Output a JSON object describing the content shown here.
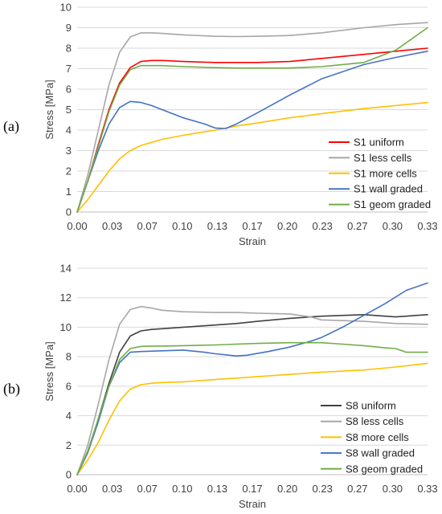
{
  "chart_data": [
    {
      "panel": "(a)",
      "type": "line",
      "xlabel": "Strain",
      "ylabel": "Stress [MPa]",
      "xlim": [
        0,
        0.33
      ],
      "ylim": [
        0,
        10
      ],
      "xticks": [
        "0.00",
        "0.03",
        "0.07",
        "0.10",
        "0.13",
        "0.17",
        "0.20",
        "0.23",
        "0.27",
        "0.30",
        "0.33"
      ],
      "yticks": [
        "0",
        "1",
        "2",
        "3",
        "4",
        "5",
        "6",
        "7",
        "8",
        "9",
        "10"
      ],
      "grid": "horizontal",
      "legend_position": "bottom-right",
      "series": [
        {
          "name": "S1 uniform",
          "color": "#ff0000",
          "x": [
            0,
            0.01,
            0.02,
            0.03,
            0.04,
            0.05,
            0.06,
            0.07,
            0.08,
            0.1,
            0.13,
            0.15,
            0.17,
            0.2,
            0.23,
            0.27,
            0.3,
            0.33
          ],
          "y": [
            0,
            1.5,
            3.3,
            5.0,
            6.3,
            7.05,
            7.35,
            7.4,
            7.4,
            7.35,
            7.3,
            7.3,
            7.3,
            7.35,
            7.5,
            7.7,
            7.85,
            8.0
          ]
        },
        {
          "name": "S1 less cells",
          "color": "#a6a6a6",
          "x": [
            0,
            0.01,
            0.02,
            0.03,
            0.04,
            0.05,
            0.06,
            0.07,
            0.08,
            0.1,
            0.13,
            0.15,
            0.17,
            0.2,
            0.23,
            0.27,
            0.3,
            0.33
          ],
          "y": [
            0,
            1.8,
            4.0,
            6.2,
            7.8,
            8.55,
            8.75,
            8.75,
            8.72,
            8.65,
            8.58,
            8.57,
            8.58,
            8.62,
            8.75,
            9.0,
            9.15,
            9.25
          ]
        },
        {
          "name": "S1 more cells",
          "color": "#ffc000",
          "x": [
            0,
            0.01,
            0.02,
            0.03,
            0.04,
            0.05,
            0.06,
            0.07,
            0.08,
            0.1,
            0.13,
            0.15,
            0.17,
            0.2,
            0.23,
            0.27,
            0.3,
            0.33
          ],
          "y": [
            0,
            0.6,
            1.3,
            2.0,
            2.6,
            3.0,
            3.25,
            3.4,
            3.55,
            3.75,
            4.0,
            4.2,
            4.35,
            4.6,
            4.8,
            5.05,
            5.2,
            5.35
          ]
        },
        {
          "name": "S1 wall graded",
          "color": "#4472c4",
          "x": [
            0,
            0.01,
            0.02,
            0.03,
            0.04,
            0.05,
            0.06,
            0.07,
            0.08,
            0.1,
            0.12,
            0.13,
            0.14,
            0.15,
            0.17,
            0.2,
            0.23,
            0.27,
            0.3,
            0.33
          ],
          "y": [
            0,
            1.5,
            3.0,
            4.3,
            5.1,
            5.4,
            5.35,
            5.2,
            5.0,
            4.6,
            4.3,
            4.1,
            4.08,
            4.3,
            4.85,
            5.7,
            6.5,
            7.2,
            7.55,
            7.85
          ]
        },
        {
          "name": "S1 geom graded",
          "color": "#70ad47",
          "x": [
            0,
            0.01,
            0.02,
            0.03,
            0.04,
            0.05,
            0.06,
            0.07,
            0.08,
            0.1,
            0.13,
            0.15,
            0.17,
            0.2,
            0.23,
            0.25,
            0.27,
            0.3,
            0.33
          ],
          "y": [
            0,
            1.5,
            3.2,
            4.9,
            6.2,
            6.95,
            7.15,
            7.15,
            7.15,
            7.1,
            7.05,
            7.03,
            7.03,
            7.03,
            7.1,
            7.2,
            7.3,
            7.9,
            9.0
          ]
        }
      ]
    },
    {
      "panel": "(b)",
      "type": "line",
      "xlabel": "Strain",
      "ylabel": "Stress [MPa]",
      "xlim": [
        0,
        0.33
      ],
      "ylim": [
        0,
        14
      ],
      "xticks": [
        "0.00",
        "0.03",
        "0.07",
        "0.10",
        "0.13",
        "0.17",
        "0.20",
        "0.23",
        "0.27",
        "0.30",
        "0.33"
      ],
      "yticks": [
        "0",
        "2",
        "4",
        "6",
        "8",
        "10",
        "12",
        "14"
      ],
      "grid": "horizontal",
      "legend_position": "bottom-right",
      "series": [
        {
          "name": "S8 uniform",
          "color": "#404040",
          "x": [
            0,
            0.01,
            0.02,
            0.03,
            0.04,
            0.05,
            0.06,
            0.07,
            0.08,
            0.1,
            0.13,
            0.15,
            0.17,
            0.2,
            0.23,
            0.27,
            0.3,
            0.32,
            0.33
          ],
          "y": [
            0,
            1.5,
            3.8,
            6.2,
            8.3,
            9.4,
            9.75,
            9.85,
            9.9,
            10.0,
            10.15,
            10.25,
            10.4,
            10.6,
            10.75,
            10.85,
            10.7,
            10.8,
            10.85
          ]
        },
        {
          "name": "S8 less cells",
          "color": "#a6a6a6",
          "x": [
            0,
            0.01,
            0.02,
            0.03,
            0.04,
            0.05,
            0.06,
            0.07,
            0.08,
            0.1,
            0.13,
            0.15,
            0.17,
            0.2,
            0.22,
            0.23,
            0.27,
            0.3,
            0.33
          ],
          "y": [
            0,
            2.0,
            4.8,
            7.8,
            10.2,
            11.2,
            11.4,
            11.3,
            11.15,
            11.05,
            11.0,
            11.0,
            10.95,
            10.9,
            10.7,
            10.5,
            10.4,
            10.25,
            10.2
          ]
        },
        {
          "name": "S8 more cells",
          "color": "#ffc000",
          "x": [
            0,
            0.01,
            0.02,
            0.03,
            0.04,
            0.05,
            0.06,
            0.07,
            0.08,
            0.1,
            0.13,
            0.15,
            0.17,
            0.2,
            0.23,
            0.27,
            0.3,
            0.33
          ],
          "y": [
            0,
            1.0,
            2.2,
            3.7,
            5.0,
            5.8,
            6.1,
            6.2,
            6.25,
            6.3,
            6.45,
            6.55,
            6.65,
            6.8,
            6.95,
            7.1,
            7.3,
            7.55
          ]
        },
        {
          "name": "S8 wall graded",
          "color": "#4472c4",
          "x": [
            0,
            0.01,
            0.02,
            0.03,
            0.04,
            0.05,
            0.06,
            0.08,
            0.1,
            0.12,
            0.13,
            0.15,
            0.16,
            0.18,
            0.2,
            0.22,
            0.23,
            0.25,
            0.27,
            0.29,
            0.31,
            0.33
          ],
          "y": [
            0,
            1.5,
            3.6,
            6.0,
            7.6,
            8.3,
            8.35,
            8.4,
            8.45,
            8.3,
            8.2,
            8.05,
            8.1,
            8.35,
            8.65,
            9.05,
            9.3,
            10.0,
            10.8,
            11.6,
            12.5,
            13.0
          ]
        },
        {
          "name": "S8 geom graded",
          "color": "#70ad47",
          "x": [
            0,
            0.01,
            0.02,
            0.03,
            0.04,
            0.05,
            0.06,
            0.07,
            0.08,
            0.1,
            0.13,
            0.15,
            0.17,
            0.2,
            0.23,
            0.25,
            0.27,
            0.29,
            0.3,
            0.31,
            0.33
          ],
          "y": [
            0,
            1.6,
            3.8,
            6.0,
            7.8,
            8.55,
            8.7,
            8.72,
            8.72,
            8.75,
            8.8,
            8.85,
            8.9,
            8.95,
            8.95,
            8.85,
            8.75,
            8.6,
            8.55,
            8.3,
            8.3
          ]
        }
      ]
    }
  ]
}
